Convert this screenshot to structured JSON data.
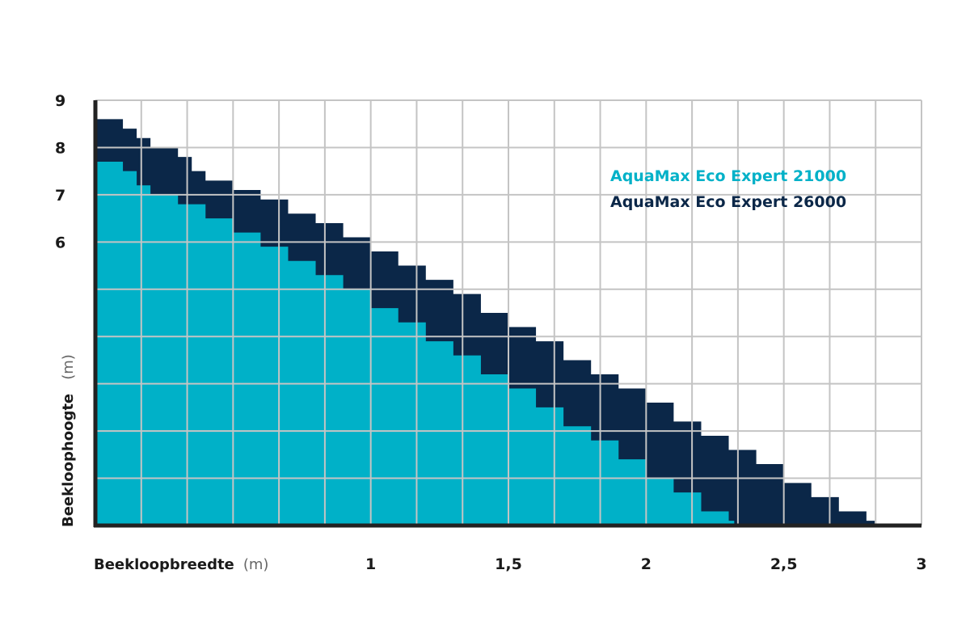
{
  "chart_data": {
    "type": "area",
    "title": "",
    "xlabel": "Beekloopbreedte",
    "xunit": "(m)",
    "ylabel": "Beekloophoogte",
    "yunit": "(m)",
    "xlim": [
      0,
      3
    ],
    "ylim": [
      0,
      9
    ],
    "grid": true,
    "legend_position": "top-right",
    "x_ticks": [
      "1",
      "1,5",
      "2",
      "2,5",
      "3"
    ],
    "x_tick_values": [
      1,
      1.5,
      2,
      2.5,
      3
    ],
    "y_ticks": [
      "6",
      "7",
      "8",
      "9"
    ],
    "y_tick_values": [
      6,
      7,
      8,
      9
    ],
    "series": [
      {
        "name": "AquaMax Eco Expert 26000",
        "color": "#0b2748",
        "x": [
          0,
          0.1,
          0.15,
          0.2,
          0.3,
          0.35,
          0.4,
          0.5,
          0.6,
          0.7,
          0.8,
          0.9,
          1.0,
          1.1,
          1.2,
          1.3,
          1.4,
          1.5,
          1.6,
          1.7,
          1.8,
          1.9,
          2.0,
          2.1,
          2.2,
          2.3,
          2.4,
          2.5,
          2.6,
          2.7,
          2.8,
          2.83
        ],
        "y": [
          8.6,
          8.4,
          8.2,
          8.0,
          7.8,
          7.5,
          7.3,
          7.1,
          6.9,
          6.6,
          6.4,
          6.1,
          5.8,
          5.5,
          5.2,
          4.9,
          4.5,
          4.2,
          3.9,
          3.5,
          3.2,
          2.9,
          2.6,
          2.2,
          1.9,
          1.6,
          1.3,
          0.9,
          0.6,
          0.3,
          0.1,
          0
        ]
      },
      {
        "name": "AquaMax Eco Expert 21000",
        "color": "#00b1c8",
        "x": [
          0,
          0.1,
          0.15,
          0.2,
          0.3,
          0.4,
          0.5,
          0.6,
          0.7,
          0.8,
          0.9,
          1.0,
          1.1,
          1.2,
          1.3,
          1.4,
          1.5,
          1.6,
          1.7,
          1.8,
          1.9,
          2.0,
          2.1,
          2.2,
          2.3,
          2.32
        ],
        "y": [
          7.7,
          7.5,
          7.2,
          7.0,
          6.8,
          6.5,
          6.2,
          5.9,
          5.6,
          5.3,
          5.0,
          4.6,
          4.3,
          3.9,
          3.6,
          3.2,
          2.9,
          2.5,
          2.1,
          1.8,
          1.4,
          1.0,
          0.7,
          0.3,
          0.1,
          0
        ]
      }
    ]
  }
}
